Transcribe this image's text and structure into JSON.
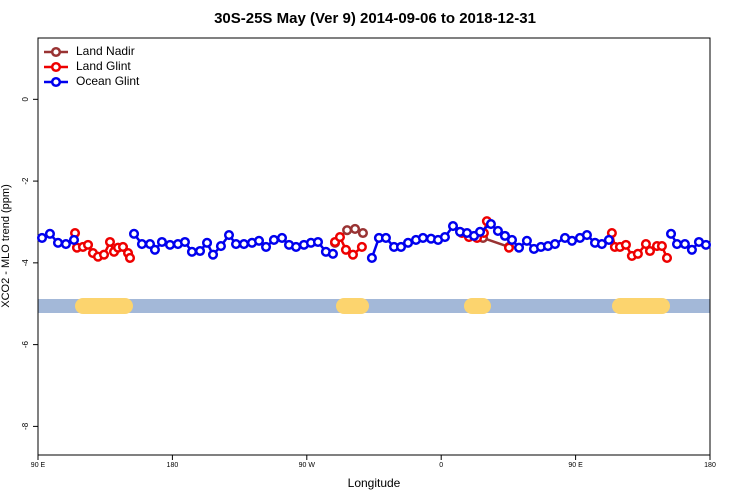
{
  "chart_data": {
    "type": "line",
    "title": "30S-25S May (Ver 9)   2014-09-06 to 2018-12-31",
    "xlabel": "Longitude",
    "ylabel": "XCO2 - MLO trend (ppm)",
    "xlim": [
      90,
      540
    ],
    "ylim": [
      -8.7,
      1.5
    ],
    "xticks": [
      {
        "value": 90,
        "label": "90 E"
      },
      {
        "value": 180,
        "label": "180"
      },
      {
        "value": 270,
        "label": "90 W"
      },
      {
        "value": 360,
        "label": "0"
      },
      {
        "value": 450,
        "label": "90 E"
      },
      {
        "value": 540,
        "label": "180"
      }
    ],
    "yticks": [
      0,
      -2,
      -4,
      -6,
      -8
    ],
    "legend": "upper-left",
    "series": [
      {
        "name": "Land Nadir",
        "color": "#993333",
        "x": [
          288.9,
          297,
          302.3,
          307.6,
          null,
          388,
          405.4
        ],
        "values": [
          -3.51,
          -3.2,
          -3.17,
          -3.27,
          null,
          -3.39,
          -3.61
        ]
      },
      {
        "name": "Land Glint",
        "color": "#ee0000",
        "x": [
          114.8,
          116.1,
          120.1,
          123.5,
          126.8,
          130.2,
          134.2,
          138.2,
          140.9,
          143.6,
          146.9,
          150.3,
          151.6,
          null,
          288.9,
          292.2,
          296.2,
          300.9,
          306.9,
          null,
          373.9,
          378.6,
          384,
          388.6,
          390.6,
          null,
          405.4,
          null,
          474.3,
          476.3,
          479.7,
          483.7,
          487.7,
          491.7,
          497.1,
          499.8,
          504.5,
          507.8,
          511.2
        ],
        "values": [
          -3.27,
          -3.63,
          -3.61,
          -3.56,
          -3.76,
          -3.85,
          -3.8,
          -3.49,
          -3.73,
          -3.63,
          -3.61,
          -3.76,
          -3.88,
          null,
          -3.49,
          -3.37,
          -3.68,
          -3.8,
          -3.61,
          null,
          -3.27,
          -3.37,
          -3.39,
          -3.27,
          -2.98,
          null,
          -3.63,
          null,
          -3.27,
          -3.61,
          -3.61,
          -3.56,
          -3.83,
          -3.78,
          -3.54,
          -3.71,
          -3.59,
          -3.59,
          -3.88
        ]
      },
      {
        "name": "Ocean Glint",
        "color": "#0000ee",
        "x": [
          92.7,
          98,
          103.4,
          108.7,
          114.1,
          null,
          154.3,
          159.6,
          165,
          168.3,
          173,
          178.4,
          183.7,
          188.4,
          193.1,
          198.5,
          203.2,
          207.2,
          212.5,
          217.9,
          222.6,
          227.9,
          233.3,
          238,
          242.7,
          248,
          253.4,
          258.1,
          262.8,
          268.1,
          272.8,
          277.5,
          282.8,
          287.5,
          null,
          313.6,
          318.3,
          323,
          328.4,
          333.1,
          337.8,
          343.1,
          347.8,
          353.2,
          357.9,
          362.5,
          367.9,
          372.6,
          377.3,
          382,
          386,
          393.3,
          398,
          402.7,
          407.4,
          412.1,
          417.4,
          422.1,
          426.8,
          431.5,
          436.2,
          442.9,
          447.6,
          452.9,
          457.6,
          463,
          467.6,
          472.3,
          null,
          513.9,
          517.9,
          523.2,
          527.9,
          532.6,
          537.3
        ],
        "values": [
          -3.39,
          -3.29,
          -3.51,
          -3.54,
          -3.44,
          null,
          -3.29,
          -3.54,
          -3.54,
          -3.68,
          -3.49,
          -3.56,
          -3.54,
          -3.49,
          -3.73,
          -3.71,
          -3.51,
          -3.8,
          -3.59,
          -3.32,
          -3.54,
          -3.54,
          -3.51,
          -3.46,
          -3.61,
          -3.44,
          -3.39,
          -3.56,
          -3.61,
          -3.56,
          -3.51,
          -3.49,
          -3.73,
          -3.78,
          null,
          -3.88,
          -3.39,
          -3.39,
          -3.61,
          -3.61,
          -3.51,
          -3.44,
          -3.39,
          -3.41,
          -3.44,
          -3.37,
          -3.1,
          -3.24,
          -3.27,
          -3.34,
          -3.24,
          -3.05,
          -3.22,
          -3.34,
          -3.44,
          -3.63,
          -3.46,
          -3.66,
          -3.61,
          -3.59,
          -3.54,
          -3.39,
          -3.46,
          -3.39,
          -3.32,
          -3.51,
          -3.54,
          -3.44,
          null,
          -3.29,
          -3.54,
          -3.54,
          -3.68,
          -3.49,
          -3.56
        ]
      }
    ]
  }
}
